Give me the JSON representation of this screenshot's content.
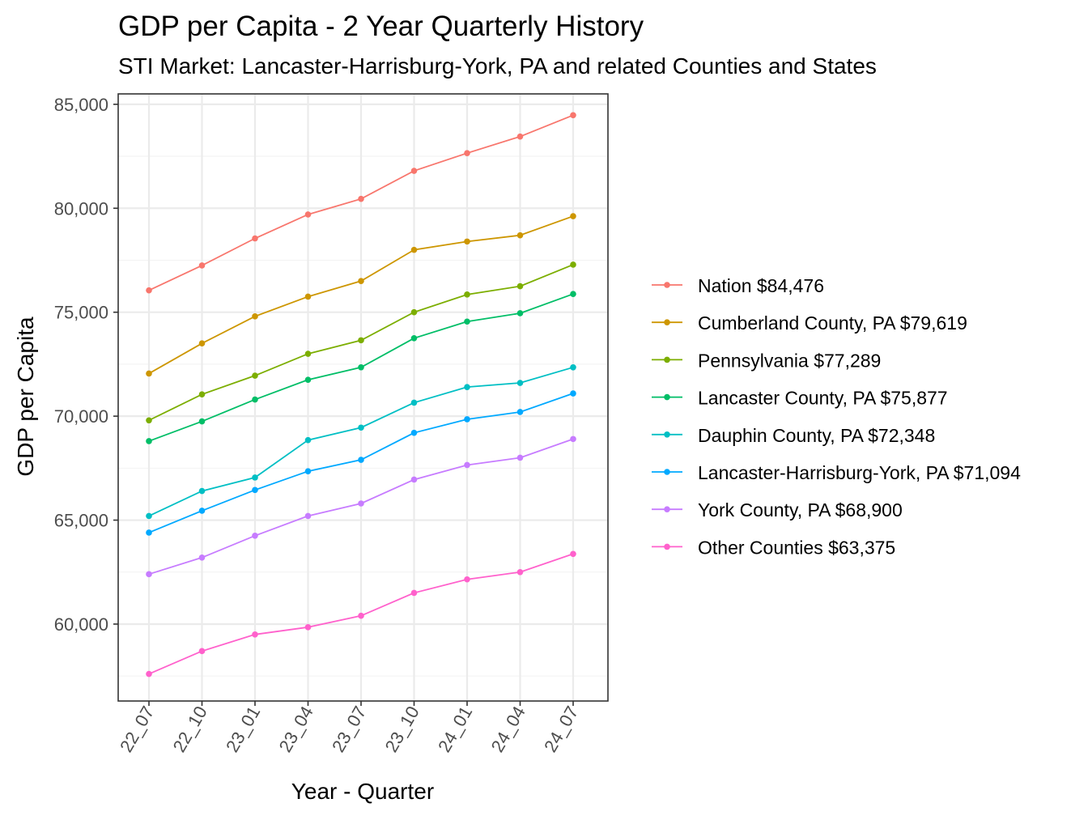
{
  "chart_data": {
    "type": "line",
    "title": "GDP per Capita - 2 Year Quarterly History",
    "subtitle": "STI Market: Lancaster-Harrisburg-York, PA and related Counties and States",
    "xlabel": "Year - Quarter",
    "ylabel": "GDP per Capita",
    "categories": [
      "22_07",
      "22_10",
      "23_01",
      "23_04",
      "23_07",
      "23_10",
      "24_01",
      "24_04",
      "24_07"
    ],
    "ylim": [
      56300,
      85500
    ],
    "yticks": [
      60000,
      65000,
      70000,
      75000,
      80000,
      85000
    ],
    "ytick_labels": [
      "60,000",
      "65,000",
      "70,000",
      "75,000",
      "80,000",
      "85,000"
    ],
    "grid": true,
    "legend_position": "right",
    "series": [
      {
        "name": "Nation $84,476",
        "color": "#F8766D",
        "values": [
          76050,
          77250,
          78550,
          79700,
          80450,
          81800,
          82650,
          83450,
          84476
        ]
      },
      {
        "name": "Cumberland County, PA $79,619",
        "color": "#CD9600",
        "values": [
          72050,
          73500,
          74800,
          75750,
          76500,
          78000,
          78400,
          78700,
          79619
        ]
      },
      {
        "name": "Pennsylvania $77,289",
        "color": "#7CAE00",
        "values": [
          69800,
          71050,
          71950,
          73000,
          73650,
          75000,
          75850,
          76250,
          77289
        ]
      },
      {
        "name": "Lancaster County, PA $75,877",
        "color": "#00BE67",
        "values": [
          68800,
          69750,
          70800,
          71750,
          72350,
          73750,
          74550,
          74950,
          75877
        ]
      },
      {
        "name": "Dauphin County, PA $72,348",
        "color": "#00BFC4",
        "values": [
          65200,
          66400,
          67050,
          68850,
          69450,
          70650,
          71400,
          71600,
          72348
        ]
      },
      {
        "name": "Lancaster-Harrisburg-York, PA $71,094",
        "color": "#00A9FF",
        "values": [
          64400,
          65450,
          66450,
          67350,
          67900,
          69200,
          69850,
          70200,
          71094
        ]
      },
      {
        "name": "York County, PA $68,900",
        "color": "#C77CFF",
        "values": [
          62400,
          63200,
          64250,
          65200,
          65800,
          66950,
          67650,
          68000,
          68900
        ]
      },
      {
        "name": "Other Counties $63,375",
        "color": "#FF61CC",
        "values": [
          57600,
          58700,
          59500,
          59850,
          60400,
          61500,
          62150,
          62500,
          63375
        ]
      }
    ]
  }
}
